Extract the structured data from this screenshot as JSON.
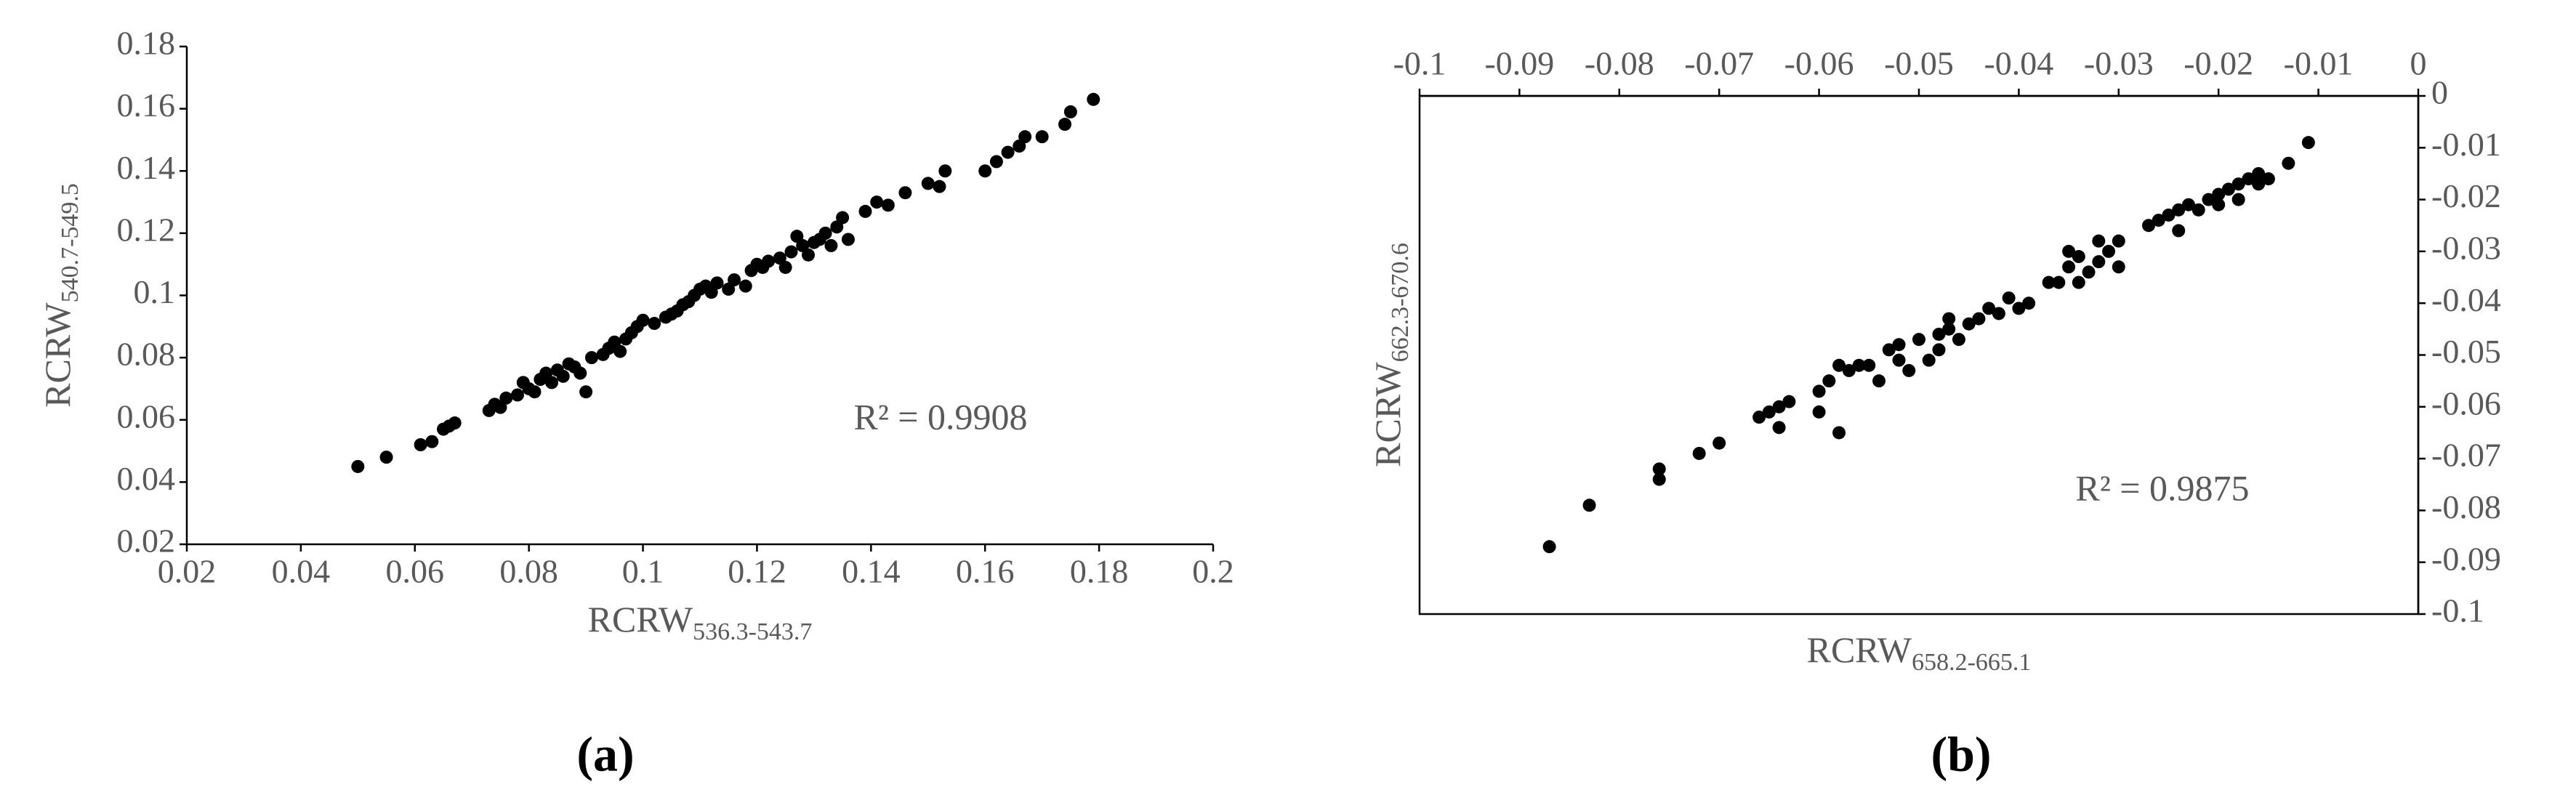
{
  "chart_data": [
    {
      "type": "scatter",
      "panel_label": "(a)",
      "xlabel": {
        "main": "RCRW",
        "subscript": "536.3-543.7"
      },
      "ylabel": {
        "main": "RCRW",
        "subscript": "540.7-549.5"
      },
      "annotation": "R² = 0.9908",
      "xlim": [
        0.02,
        0.2
      ],
      "xticks": [
        0.02,
        0.04,
        0.06,
        0.08,
        0.1,
        0.12,
        0.14,
        0.16,
        0.18,
        0.2
      ],
      "ylim": [
        0.02,
        0.18
      ],
      "yticks": [
        0.02,
        0.04,
        0.06,
        0.08,
        0.1,
        0.12,
        0.14,
        0.16,
        0.18
      ],
      "x_axis_position": "bottom",
      "y_axis_position": "left",
      "frame": false,
      "color": "#000000",
      "x": [
        0.05,
        0.055,
        0.061,
        0.063,
        0.065,
        0.066,
        0.067,
        0.073,
        0.074,
        0.075,
        0.076,
        0.078,
        0.079,
        0.08,
        0.081,
        0.082,
        0.083,
        0.084,
        0.085,
        0.086,
        0.087,
        0.088,
        0.089,
        0.09,
        0.091,
        0.093,
        0.094,
        0.095,
        0.096,
        0.097,
        0.098,
        0.099,
        0.1,
        0.102,
        0.104,
        0.105,
        0.106,
        0.107,
        0.108,
        0.109,
        0.11,
        0.111,
        0.112,
        0.113,
        0.115,
        0.116,
        0.118,
        0.119,
        0.12,
        0.121,
        0.122,
        0.124,
        0.125,
        0.126,
        0.127,
        0.128,
        0.129,
        0.13,
        0.131,
        0.132,
        0.133,
        0.134,
        0.135,
        0.136,
        0.139,
        0.141,
        0.143,
        0.146,
        0.15,
        0.152,
        0.153,
        0.16,
        0.162,
        0.164,
        0.166,
        0.167,
        0.17,
        0.174,
        0.175,
        0.179
      ],
      "values": [
        0.045,
        0.048,
        0.052,
        0.053,
        0.057,
        0.058,
        0.059,
        0.063,
        0.065,
        0.064,
        0.067,
        0.068,
        0.072,
        0.07,
        0.069,
        0.073,
        0.075,
        0.072,
        0.076,
        0.074,
        0.078,
        0.077,
        0.075,
        0.069,
        0.08,
        0.081,
        0.083,
        0.085,
        0.082,
        0.086,
        0.088,
        0.09,
        0.092,
        0.091,
        0.093,
        0.094,
        0.095,
        0.097,
        0.098,
        0.1,
        0.102,
        0.103,
        0.101,
        0.104,
        0.102,
        0.105,
        0.103,
        0.108,
        0.11,
        0.109,
        0.111,
        0.112,
        0.109,
        0.114,
        0.119,
        0.116,
        0.113,
        0.117,
        0.118,
        0.12,
        0.116,
        0.122,
        0.125,
        0.118,
        0.127,
        0.13,
        0.129,
        0.133,
        0.136,
        0.135,
        0.14,
        0.14,
        0.143,
        0.146,
        0.148,
        0.151,
        0.151,
        0.155,
        0.159,
        0.163
      ]
    },
    {
      "type": "scatter",
      "panel_label": "(b)",
      "xlabel": {
        "main": "RCRW",
        "subscript": "658.2-665.1"
      },
      "ylabel": {
        "main": "RCRW",
        "subscript": "662.3-670.6"
      },
      "annotation": "R² = 0.9875",
      "xlim": [
        -0.1,
        0
      ],
      "xticks": [
        -0.1,
        -0.09,
        -0.08,
        -0.07,
        -0.06,
        -0.05,
        -0.04,
        -0.03,
        -0.02,
        -0.01,
        0
      ],
      "ylim": [
        -0.1,
        0
      ],
      "yticks": [
        0,
        -0.01,
        -0.02,
        -0.03,
        -0.04,
        -0.05,
        -0.06,
        -0.07,
        -0.08,
        -0.09,
        -0.1
      ],
      "x_axis_position": "top",
      "y_axis_position": "right",
      "frame": true,
      "color": "#000000",
      "x": [
        -0.087,
        -0.083,
        -0.076,
        -0.076,
        -0.072,
        -0.07,
        -0.066,
        -0.065,
        -0.064,
        -0.064,
        -0.063,
        -0.06,
        -0.06,
        -0.059,
        -0.058,
        -0.058,
        -0.057,
        -0.056,
        -0.055,
        -0.054,
        -0.053,
        -0.052,
        -0.052,
        -0.051,
        -0.05,
        -0.049,
        -0.048,
        -0.048,
        -0.047,
        -0.047,
        -0.046,
        -0.045,
        -0.044,
        -0.043,
        -0.042,
        -0.041,
        -0.04,
        -0.039,
        -0.037,
        -0.036,
        -0.035,
        -0.035,
        -0.034,
        -0.034,
        -0.033,
        -0.032,
        -0.032,
        -0.031,
        -0.03,
        -0.03,
        -0.027,
        -0.026,
        -0.025,
        -0.024,
        -0.024,
        -0.023,
        -0.022,
        -0.021,
        -0.02,
        -0.02,
        -0.019,
        -0.018,
        -0.018,
        -0.017,
        -0.016,
        -0.016,
        -0.015,
        -0.013,
        -0.011
      ],
      "values": [
        -0.087,
        -0.079,
        -0.072,
        -0.074,
        -0.069,
        -0.067,
        -0.062,
        -0.061,
        -0.06,
        -0.064,
        -0.059,
        -0.061,
        -0.057,
        -0.055,
        -0.065,
        -0.052,
        -0.053,
        -0.052,
        -0.052,
        -0.055,
        -0.049,
        -0.048,
        -0.051,
        -0.053,
        -0.047,
        -0.051,
        -0.046,
        -0.049,
        -0.043,
        -0.045,
        -0.047,
        -0.044,
        -0.043,
        -0.041,
        -0.042,
        -0.039,
        -0.041,
        -0.04,
        -0.036,
        -0.036,
        -0.033,
        -0.03,
        -0.036,
        -0.031,
        -0.034,
        -0.028,
        -0.032,
        -0.03,
        -0.033,
        -0.028,
        -0.025,
        -0.024,
        -0.023,
        -0.022,
        -0.026,
        -0.021,
        -0.022,
        -0.02,
        -0.019,
        -0.021,
        -0.018,
        -0.017,
        -0.02,
        -0.016,
        -0.015,
        -0.017,
        -0.016,
        -0.013,
        -0.009
      ]
    }
  ]
}
